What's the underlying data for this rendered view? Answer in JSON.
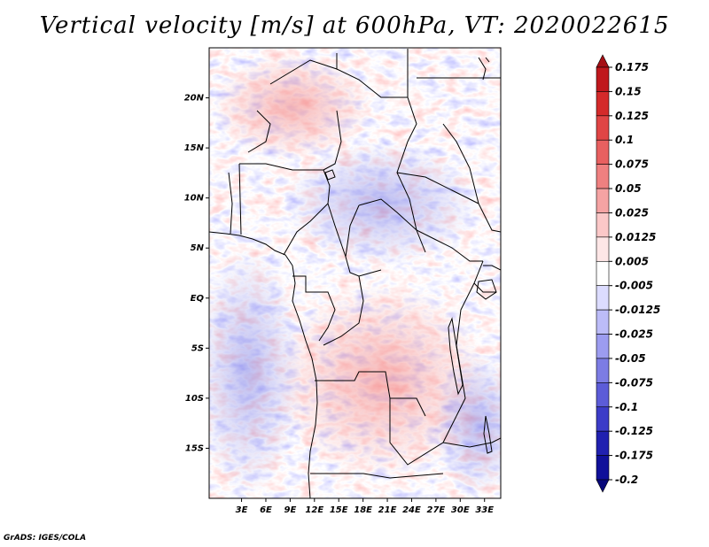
{
  "title": "Vertical velocity [m/s] at 600hPa, VT: 2020022615",
  "credit": "GrADS: IGES/COLA",
  "map": {
    "lon_range": [
      -1,
      35
    ],
    "lat_range": [
      -20,
      25
    ],
    "lat_ticks": [
      {
        "value": 20,
        "label": "20N"
      },
      {
        "value": 15,
        "label": "15N"
      },
      {
        "value": 10,
        "label": "10N"
      },
      {
        "value": 5,
        "label": "5N"
      },
      {
        "value": 0,
        "label": "EQ"
      },
      {
        "value": -5,
        "label": "5S"
      },
      {
        "value": -10,
        "label": "10S"
      },
      {
        "value": -15,
        "label": "15S"
      }
    ],
    "lon_ticks": [
      {
        "value": 3,
        "label": "3E"
      },
      {
        "value": 6,
        "label": "6E"
      },
      {
        "value": 9,
        "label": "9E"
      },
      {
        "value": 12,
        "label": "12E"
      },
      {
        "value": 15,
        "label": "15E"
      },
      {
        "value": 18,
        "label": "18E"
      },
      {
        "value": 21,
        "label": "21E"
      },
      {
        "value": 24,
        "label": "24E"
      },
      {
        "value": 27,
        "label": "27E"
      },
      {
        "value": 30,
        "label": "30E"
      },
      {
        "value": 33,
        "label": "33E"
      }
    ]
  },
  "colorbar": {
    "levels": [
      "0.175",
      "0.15",
      "0.125",
      "0.1",
      "0.075",
      "0.05",
      "0.025",
      "0.0125",
      "0.005",
      "-0.005",
      "-0.0125",
      "-0.025",
      "-0.05",
      "-0.075",
      "-0.1",
      "-0.125",
      "-0.175",
      "-0.2"
    ],
    "colors": [
      "#a50f15",
      "#c0181d",
      "#d42a2a",
      "#e04545",
      "#e86060",
      "#ef8080",
      "#f5a3a3",
      "#fbc8c8",
      "#fde6e6",
      "#ffffff",
      "#dcdcff",
      "#bcbcf8",
      "#9c9cf0",
      "#7c7ce4",
      "#5c5cd8",
      "#3c3cc8",
      "#2020b0",
      "#10109a",
      "#08087a"
    ]
  }
}
